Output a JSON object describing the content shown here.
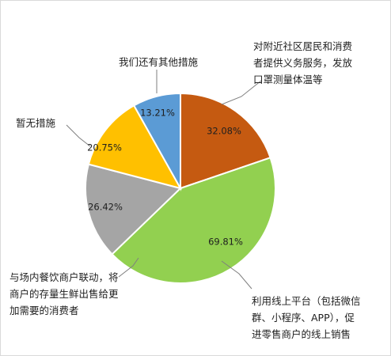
{
  "chart_data": {
    "type": "pie",
    "title": "",
    "slices": [
      {
        "label": "对附近社区居民和消费者提供义务服务，发放口罩测量体温等",
        "lines": [
          "对附近社区居民和消费",
          "者提供义务服务，发放",
          "口罩测量体温等"
        ],
        "value": 32.08,
        "display": "32.08%",
        "color": "#c55a11"
      },
      {
        "label": "利用线上平台（包括微信群、小程序、APP），促进零售商户的线上销售",
        "lines": [
          "利用线上平台（包括微信",
          "群、小程序、APP），促",
          "进零售商户的线上销售"
        ],
        "value": 69.81,
        "display": "69.81%",
        "color": "#92d050"
      },
      {
        "label": "与场内餐饮商户联动，将商户的存量生鲜出售给更加需要的消费者",
        "lines": [
          "与场内餐饮商户联动，将",
          "商户的存量生鲜出售给更",
          "加需要的消费者"
        ],
        "value": 26.42,
        "display": "26.42%",
        "color": "#a5a5a5"
      },
      {
        "label": "暂无措施",
        "lines": [
          "暂无措施"
        ],
        "value": 20.75,
        "display": "20.75%",
        "color": "#ffc000"
      },
      {
        "label": "我们还有其他措施",
        "lines": [
          "我们还有其他措施"
        ],
        "value": 13.21,
        "display": "13.21%",
        "color": "#5b9bd5"
      }
    ],
    "legend": "none"
  }
}
